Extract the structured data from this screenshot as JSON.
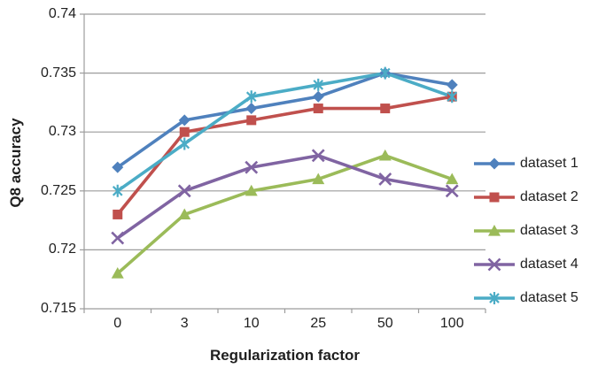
{
  "chart_data": {
    "type": "line",
    "title": "",
    "xlabel": "Regularization factor",
    "ylabel": "Q8 accuracy",
    "categories": [
      "0",
      "3",
      "10",
      "25",
      "50",
      "100"
    ],
    "ylim": [
      0.715,
      0.74
    ],
    "y_tick_step": 0.005,
    "y_tick_labels": [
      "0.74",
      "0.735",
      "0.73",
      "0.725",
      "0.72",
      "0.715"
    ],
    "grid": "horizontal-only",
    "legend_position": "right",
    "series": [
      {
        "name": "dataset 1",
        "color": "#4F81BD",
        "marker": "diamond",
        "values": [
          0.727,
          0.731,
          0.732,
          0.733,
          0.735,
          0.734
        ]
      },
      {
        "name": "dataset 2",
        "color": "#C0504D",
        "marker": "square",
        "values": [
          0.723,
          0.73,
          0.731,
          0.732,
          0.732,
          0.733
        ]
      },
      {
        "name": "dataset 3",
        "color": "#9BBB59",
        "marker": "triangle",
        "values": [
          0.718,
          0.723,
          0.725,
          0.726,
          0.728,
          0.726
        ]
      },
      {
        "name": "dataset 4",
        "color": "#8064A2",
        "marker": "x",
        "values": [
          0.721,
          0.725,
          0.727,
          0.728,
          0.726,
          0.725
        ]
      },
      {
        "name": "dataset 5",
        "color": "#4BACC6",
        "marker": "asterisk",
        "values": [
          0.725,
          0.729,
          0.733,
          0.734,
          0.735,
          0.733
        ]
      }
    ],
    "grid_color": "#9c9c9c",
    "axis_color": "#9c9c9c",
    "text_color": "#1f1f1f"
  }
}
